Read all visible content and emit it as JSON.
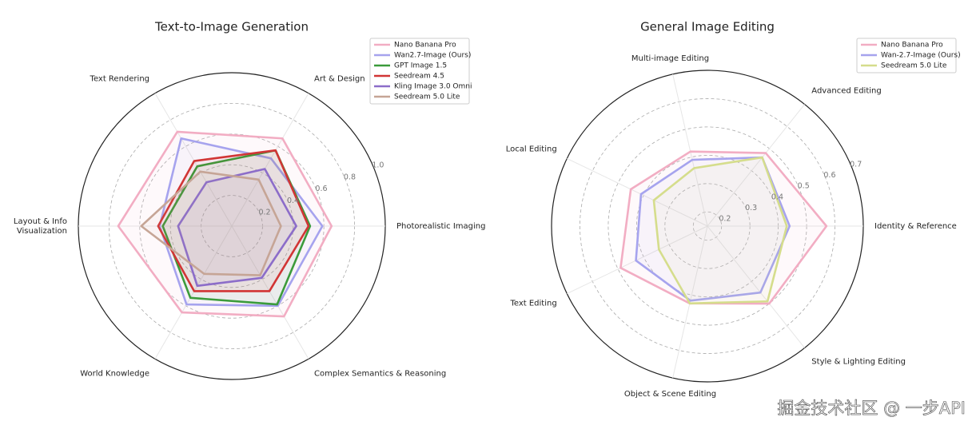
{
  "chart_data": [
    {
      "type": "radar",
      "title": "Text-to-Image Generation",
      "categories": [
        "Photorealistic Imaging",
        "Art & Design",
        "Text Rendering",
        "Layout & Info\nVisualization",
        "World Knowledge",
        "Complex Semantics & Reasoning"
      ],
      "rlim": [
        0,
        1
      ],
      "rticks": [
        0.2,
        0.4,
        0.6,
        0.8,
        {
          "value": 1,
          "label": "1.0"
        }
      ],
      "grid": true,
      "legend": "upper right",
      "series": [
        {
          "name": "Nano Banana Pro",
          "color": "#f2adc3",
          "values": [
            0.65,
            0.66,
            0.71,
            0.74,
            0.65,
            0.68
          ]
        },
        {
          "name": "Wan2.7-Image (Ours)",
          "color": "#a6a3ee",
          "values": [
            0.59,
            0.51,
            0.66,
            0.47,
            0.59,
            0.6
          ]
        },
        {
          "name": "GPT Image 1.5",
          "color": "#3b9b3b",
          "values": [
            0.51,
            0.57,
            0.45,
            0.45,
            0.54,
            0.59
          ]
        },
        {
          "name": "Seedream 4.5",
          "color": "#d13535",
          "values": [
            0.5,
            0.57,
            0.49,
            0.48,
            0.49,
            0.49
          ]
        },
        {
          "name": "Kling Image 3.0 Omni",
          "color": "#8c6dc9",
          "values": [
            0.42,
            0.43,
            0.33,
            0.35,
            0.45,
            0.39
          ]
        },
        {
          "name": "Seedream 5.0 Lite",
          "color": "#c6a596",
          "values": [
            0.32,
            0.35,
            0.41,
            0.59,
            0.36,
            0.37
          ]
        }
      ]
    },
    {
      "type": "radar",
      "title": "General Image Editing",
      "categories": [
        "Identity & Reference",
        "Advanced Editing",
        "Multi-image Editing",
        "Local Editing",
        "Text Editing",
        "Object & Scene Editing",
        "Style & Lighting Editing"
      ],
      "rlim": [
        0.15,
        0.7
      ],
      "rticks": [
        0.2,
        0.3,
        0.4,
        0.5,
        0.6,
        0.7
      ],
      "grid": true,
      "legend": "upper right",
      "series": [
        {
          "name": "Nano Banana Pro",
          "color": "#f2adc3",
          "values": [
            0.57,
            0.48,
            0.42,
            0.45,
            0.49,
            0.43,
            0.5
          ]
        },
        {
          "name": "Wan-2.7-Image (Ours)",
          "color": "#a6a3ee",
          "values": [
            0.44,
            0.46,
            0.39,
            0.41,
            0.43,
            0.42,
            0.45
          ]
        },
        {
          "name": "Seedream 5.0 Lite",
          "color": "#d5dd8c",
          "values": [
            0.43,
            0.46,
            0.36,
            0.36,
            0.34,
            0.43,
            0.49
          ]
        }
      ]
    }
  ],
  "watermark": "掘金技术社区 @ 一步API"
}
